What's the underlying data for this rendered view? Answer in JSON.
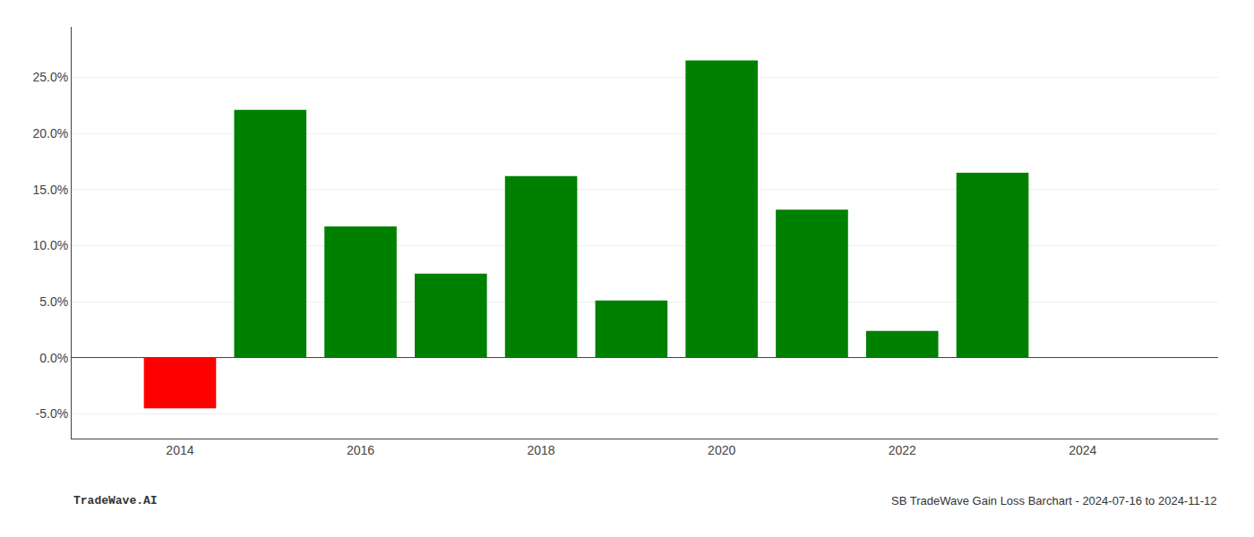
{
  "chart_data": {
    "type": "bar",
    "x": [
      2014,
      2015,
      2016,
      2017,
      2018,
      2019,
      2020,
      2021,
      2022,
      2023
    ],
    "values": [
      -0.045,
      0.221,
      0.117,
      0.075,
      0.162,
      0.051,
      0.265,
      0.132,
      0.024,
      0.165
    ],
    "colors": [
      "#ff0000",
      "#008000",
      "#008000",
      "#008000",
      "#008000",
      "#008000",
      "#008000",
      "#008000",
      "#008000",
      "#008000"
    ],
    "xlim": [
      2012.8,
      2025.5
    ],
    "xticks": [
      2014,
      2016,
      2018,
      2020,
      2022,
      2024
    ],
    "ylim": [
      -0.072,
      0.295
    ],
    "yticks": [
      {
        "value": -0.05,
        "label": "-5.0%"
      },
      {
        "value": 0.0,
        "label": "0.0%"
      },
      {
        "value": 0.05,
        "label": "5.0%"
      },
      {
        "value": 0.1,
        "label": "10.0%"
      },
      {
        "value": 0.15,
        "label": "15.0%"
      },
      {
        "value": 0.2,
        "label": "20.0%"
      },
      {
        "value": 0.25,
        "label": "25.0%"
      }
    ],
    "grid": true,
    "annotations": [
      "TradeWave.AI",
      "SB TradeWave Gain Loss Barchart - 2024-07-16 to 2024-11-12"
    ]
  }
}
